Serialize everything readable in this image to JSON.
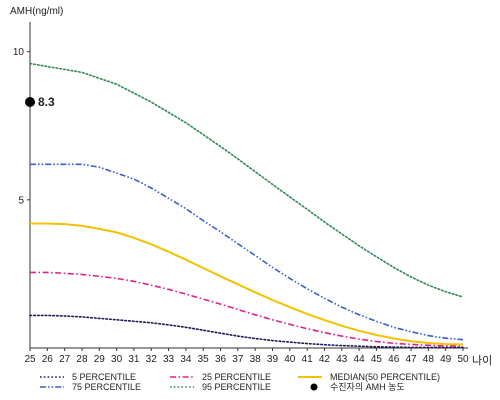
{
  "chart_data": {
    "type": "line",
    "ylabel": "AMH(ng/ml)",
    "xlabel": "나이",
    "x": [
      25,
      26,
      27,
      28,
      29,
      30,
      31,
      32,
      33,
      34,
      35,
      36,
      37,
      38,
      39,
      40,
      41,
      42,
      43,
      44,
      45,
      46,
      47,
      48,
      49,
      50
    ],
    "x_ticks": [
      "25",
      "26",
      "27",
      "28",
      "29",
      "30",
      "31",
      "32",
      "33",
      "34",
      "35",
      "36",
      "37",
      "38",
      "39",
      "40",
      "41",
      "42",
      "43",
      "44",
      "45",
      "46",
      "47",
      "48",
      "49",
      "50"
    ],
    "xlim": [
      25,
      50
    ],
    "ylim": [
      0,
      11
    ],
    "y_ticks": [
      {
        "value": 10,
        "label": "10"
      },
      {
        "value": 5,
        "label": "5"
      }
    ],
    "grid": false,
    "legend_position": "bottom",
    "series": [
      {
        "name": "5 PERCENTILE",
        "color": "#1a1a5e",
        "style": "dotted",
        "values": [
          1.1,
          1.1,
          1.08,
          1.05,
          1.0,
          0.95,
          0.9,
          0.85,
          0.78,
          0.7,
          0.6,
          0.5,
          0.4,
          0.32,
          0.25,
          0.2,
          0.15,
          0.11,
          0.08,
          0.06,
          0.04,
          0.03,
          0.02,
          0.02,
          0.02,
          0.02
        ]
      },
      {
        "name": "25 PERCENTILE",
        "color": "#e0208a",
        "style": "dashdot",
        "values": [
          2.55,
          2.55,
          2.52,
          2.48,
          2.42,
          2.35,
          2.25,
          2.12,
          1.98,
          1.82,
          1.65,
          1.48,
          1.3,
          1.12,
          0.95,
          0.8,
          0.65,
          0.52,
          0.4,
          0.3,
          0.22,
          0.16,
          0.12,
          0.09,
          0.07,
          0.06
        ]
      },
      {
        "name": "MEDIAN(50 PERCENTILE)",
        "color": "#f2c200",
        "style": "solid",
        "values": [
          4.2,
          4.2,
          4.18,
          4.12,
          4.02,
          3.9,
          3.72,
          3.5,
          3.25,
          2.98,
          2.7,
          2.42,
          2.15,
          1.88,
          1.62,
          1.38,
          1.15,
          0.94,
          0.75,
          0.58,
          0.44,
          0.32,
          0.23,
          0.17,
          0.13,
          0.12
        ]
      },
      {
        "name": "75 PERCENTILE",
        "color": "#3a5fc8",
        "style": "dashdotdot",
        "values": [
          6.2,
          6.2,
          6.2,
          6.2,
          6.1,
          5.9,
          5.7,
          5.4,
          5.05,
          4.7,
          4.3,
          3.92,
          3.52,
          3.12,
          2.72,
          2.35,
          2.0,
          1.68,
          1.38,
          1.12,
          0.9,
          0.7,
          0.55,
          0.42,
          0.33,
          0.28
        ]
      },
      {
        "name": "95 PERCENTILE",
        "color": "#2e8b57",
        "style": "dotted",
        "values": [
          9.6,
          9.5,
          9.4,
          9.3,
          9.1,
          8.9,
          8.6,
          8.3,
          7.95,
          7.6,
          7.2,
          6.8,
          6.38,
          5.95,
          5.52,
          5.1,
          4.68,
          4.25,
          3.85,
          3.45,
          3.08,
          2.72,
          2.4,
          2.12,
          1.9,
          1.72
        ]
      }
    ],
    "point": {
      "name": "수진자의 AMH 농도",
      "x": 25,
      "y": 8.3,
      "label": "8.3",
      "color": "#000000"
    }
  }
}
